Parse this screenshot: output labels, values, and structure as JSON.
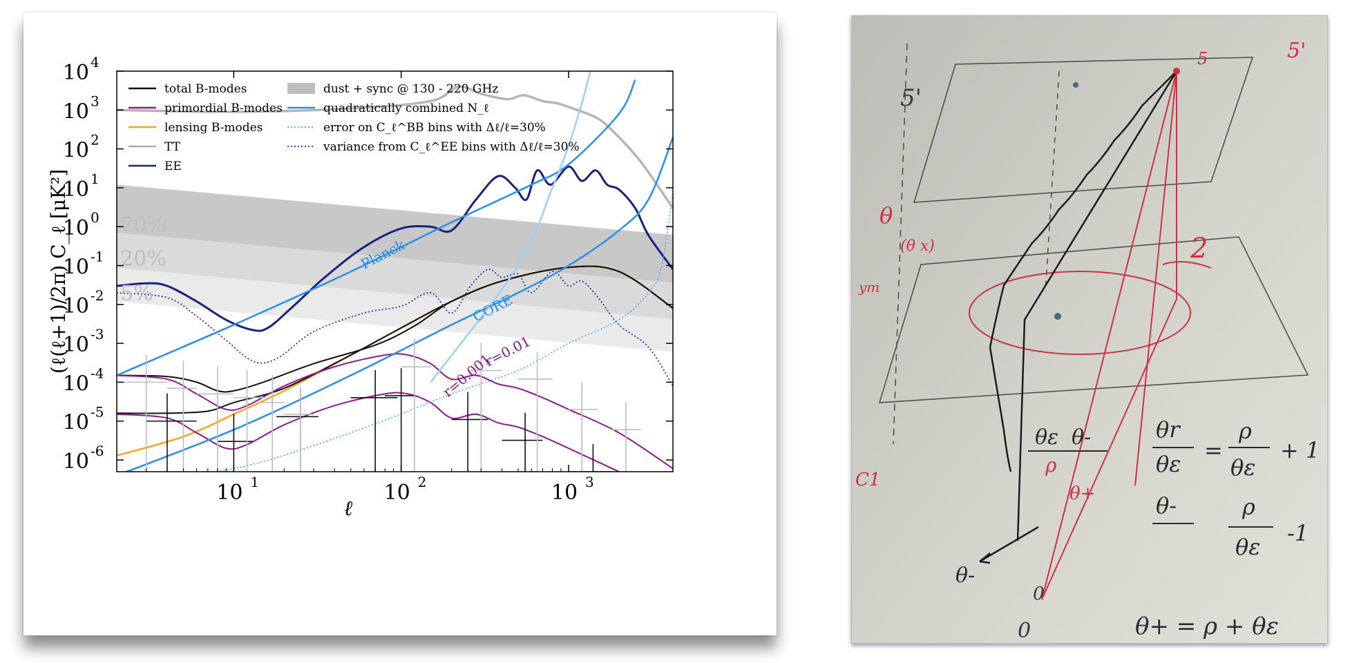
{
  "chart_data": {
    "type": "line",
    "xlabel": "ℓ",
    "ylabel": "(ℓ(ℓ+1)/2π) C_ℓ [μK²]",
    "x_scale": "log",
    "y_scale": "log",
    "xlim": [
      2,
      4200
    ],
    "ylim": [
      5e-07,
      10000
    ],
    "x_ticks": [
      {
        "v": 10,
        "b": "10",
        "e": "1"
      },
      {
        "v": 100,
        "b": "10",
        "e": "2"
      },
      {
        "v": 1000,
        "b": "10",
        "e": "3"
      }
    ],
    "y_ticks": [
      {
        "v": 10000.0,
        "b": "10",
        "e": "4"
      },
      {
        "v": 1000.0,
        "b": "10",
        "e": "3"
      },
      {
        "v": 100.0,
        "b": "10",
        "e": "2"
      },
      {
        "v": 10.0,
        "b": "10",
        "e": "1"
      },
      {
        "v": 1.0,
        "b": "10",
        "e": "0"
      },
      {
        "v": 0.1,
        "b": "10",
        "e": "-1"
      },
      {
        "v": 0.01,
        "b": "10",
        "e": "-2"
      },
      {
        "v": 0.001,
        "b": "10",
        "e": "-3"
      },
      {
        "v": 0.0001,
        "b": "10",
        "e": "-4"
      },
      {
        "v": 1e-05,
        "b": "10",
        "e": "-5"
      },
      {
        "v": 1e-06,
        "b": "10",
        "e": "-6"
      }
    ],
    "grid": false,
    "legend_position": "top",
    "legend": [
      {
        "label": "total B-modes",
        "color": "#111111",
        "style": "solid"
      },
      {
        "label": "primordial B-modes",
        "color": "#8b1a89",
        "style": "solid"
      },
      {
        "label": "lensing B-modes",
        "color": "#f5a623",
        "style": "solid"
      },
      {
        "label": "TT",
        "color": "#aaaaaa",
        "style": "solid"
      },
      {
        "label": "EE",
        "color": "#15237e",
        "style": "solid"
      },
      {
        "label": "dust + sync @ 130 - 220 GHz",
        "color": "#bdbdbd",
        "style": "band"
      },
      {
        "label": "quadratically combined N_ℓ",
        "color": "#2a8ee6",
        "style": "solid"
      },
      {
        "label": "error on C_ℓ^BB bins with Δℓ/ℓ=30%",
        "color": "#4da6f0",
        "style": "dotted"
      },
      {
        "label": "variance from C_ℓ^EE bins with Δℓ/ℓ=30%",
        "color": "#2a2a9e",
        "style": "dotted"
      }
    ],
    "annotations": [
      {
        "text": "Planck",
        "x": 60,
        "y": 0.08,
        "angle": -27,
        "color": "#2a8ee6"
      },
      {
        "text": "CORE",
        "x": 280,
        "y": 0.0035,
        "angle": -27,
        "color": "#2a8ee6"
      },
      {
        "text": "r=0.01",
        "x": 330,
        "y": 0.00025,
        "angle": -27,
        "color": "#8b1a89"
      },
      {
        "text": "r=0.001",
        "x": 190,
        "y": 4e-05,
        "angle": -40,
        "color": "#8b1a89"
      },
      {
        "text": "70%",
        "x": 2.1,
        "y": 0.75,
        "angle": 0,
        "color": "#bdbdbd"
      },
      {
        "text": "20%",
        "x": 2.1,
        "y": 0.1,
        "angle": 0,
        "color": "#bdbdbd"
      },
      {
        "text": "5%",
        "x": 2.1,
        "y": 0.013,
        "angle": 0,
        "color": "#bdbdbd"
      }
    ],
    "bands": [
      {
        "name": "70%",
        "color": "#b5b5b5",
        "opacity": 0.75,
        "upper": [
          [
            2,
            12
          ],
          [
            4200,
            0.62
          ]
        ],
        "lower": [
          [
            2,
            0.7
          ],
          [
            4200,
            0.036
          ]
        ]
      },
      {
        "name": "20%",
        "color": "#bcbcbc",
        "opacity": 0.55,
        "upper": [
          [
            2,
            0.7
          ],
          [
            4200,
            0.036
          ]
        ],
        "lower": [
          [
            2,
            0.088
          ],
          [
            4200,
            0.0042
          ]
        ]
      },
      {
        "name": "5%",
        "color": "#d0d0d0",
        "opacity": 0.45,
        "upper": [
          [
            2,
            0.088
          ],
          [
            4200,
            0.0042
          ]
        ],
        "lower": [
          [
            2,
            0.012
          ],
          [
            4200,
            0.0006
          ]
        ]
      }
    ],
    "series": [
      {
        "key": "tt",
        "color": "#b5b5b5",
        "width": 3.5,
        "dash": "",
        "points": [
          [
            2,
            1000
          ],
          [
            10,
            900
          ],
          [
            50,
            1100
          ],
          [
            150,
            1700
          ],
          [
            220,
            4000
          ],
          [
            300,
            2600
          ],
          [
            430,
            1900
          ],
          [
            540,
            2400
          ],
          [
            700,
            1700
          ],
          [
            850,
            1500
          ],
          [
            1000,
            1200
          ],
          [
            1500,
            600
          ],
          [
            2000,
            200
          ],
          [
            2500,
            70
          ],
          [
            3000,
            25
          ],
          [
            4200,
            3
          ]
        ]
      },
      {
        "key": "ee",
        "color": "#15237e",
        "width": 3,
        "dash": "",
        "points": [
          [
            2,
            0.03
          ],
          [
            3,
            0.035
          ],
          [
            4,
            0.03
          ],
          [
            6,
            0.012
          ],
          [
            9,
            0.004
          ],
          [
            13,
            0.0022
          ],
          [
            16,
            0.0025
          ],
          [
            22,
            0.008
          ],
          [
            35,
            0.05
          ],
          [
            60,
            0.3
          ],
          [
            100,
            0.9
          ],
          [
            150,
            1.0
          ],
          [
            200,
            0.8
          ],
          [
            280,
            5
          ],
          [
            380,
            20
          ],
          [
            480,
            10
          ],
          [
            560,
            5
          ],
          [
            650,
            28
          ],
          [
            780,
            12
          ],
          [
            1000,
            35
          ],
          [
            1200,
            15
          ],
          [
            1450,
            28
          ],
          [
            1700,
            12
          ],
          [
            2000,
            9
          ],
          [
            2500,
            3
          ],
          [
            3000,
            0.6
          ],
          [
            4200,
            0.08
          ]
        ]
      },
      {
        "key": "ee_var",
        "color": "#2a2a9e",
        "width": 1.8,
        "dash": "2,3",
        "points": [
          [
            2,
            0.02
          ],
          [
            4,
            0.015
          ],
          [
            6,
            0.005
          ],
          [
            9,
            0.0012
          ],
          [
            13,
            0.00035
          ],
          [
            18,
            0.0004
          ],
          [
            30,
            0.002
          ],
          [
            60,
            0.006
          ],
          [
            100,
            0.009
          ],
          [
            150,
            0.02
          ],
          [
            200,
            0.006
          ],
          [
            260,
            0.03
          ],
          [
            330,
            0.08
          ],
          [
            400,
            0.05
          ],
          [
            500,
            0.06
          ],
          [
            600,
            0.02
          ],
          [
            800,
            0.07
          ],
          [
            1000,
            0.03
          ],
          [
            1200,
            0.04
          ],
          [
            1500,
            0.015
          ],
          [
            2000,
            0.003
          ],
          [
            3000,
            0.0008
          ],
          [
            4200,
            8e-05
          ]
        ]
      },
      {
        "key": "lensing",
        "color": "#f5a623",
        "width": 2.5,
        "dash": "",
        "points": [
          [
            2,
            1.3e-06
          ],
          [
            5,
            4e-06
          ],
          [
            10,
            1.5e-05
          ],
          [
            20,
            6e-05
          ],
          [
            50,
            0.0005
          ],
          [
            100,
            0.0025
          ],
          [
            200,
            0.012
          ],
          [
            400,
            0.04
          ],
          [
            1000,
            0.09
          ],
          [
            2000,
            0.07
          ],
          [
            4200,
            0.008
          ]
        ]
      },
      {
        "key": "total_r001",
        "color": "#111111",
        "width": 2,
        "dash": "",
        "points": [
          [
            2,
            0.00015
          ],
          [
            4,
            0.00014
          ],
          [
            6,
            0.0001
          ],
          [
            8,
            6e-05
          ],
          [
            10,
            6e-05
          ],
          [
            15,
            0.0001
          ],
          [
            30,
            0.0003
          ],
          [
            70,
            0.0009
          ],
          [
            120,
            0.0028
          ],
          [
            200,
            0.012
          ],
          [
            400,
            0.04
          ],
          [
            1000,
            0.09
          ],
          [
            2000,
            0.07
          ],
          [
            4200,
            0.008
          ]
        ]
      },
      {
        "key": "total_r0001",
        "color": "#111111",
        "width": 2,
        "dash": "",
        "points": [
          [
            2,
            1.6e-05
          ],
          [
            4,
            1.6e-05
          ],
          [
            7,
            1.8e-05
          ],
          [
            10,
            3e-05
          ],
          [
            20,
            7e-05
          ],
          [
            50,
            0.0005
          ],
          [
            100,
            0.0025
          ],
          [
            200,
            0.012
          ],
          [
            400,
            0.04
          ],
          [
            1000,
            0.09
          ],
          [
            2000,
            0.07
          ],
          [
            4200,
            0.008
          ]
        ]
      },
      {
        "key": "prim_r001",
        "color": "#8b1a89",
        "width": 2,
        "dash": "",
        "points": [
          [
            2,
            0.00015
          ],
          [
            4,
            0.00012
          ],
          [
            6,
            5e-05
          ],
          [
            9,
            2e-05
          ],
          [
            12,
            2.5e-05
          ],
          [
            20,
            8e-05
          ],
          [
            40,
            0.00025
          ],
          [
            80,
            0.0005
          ],
          [
            110,
            0.0005
          ],
          [
            150,
            0.0003
          ],
          [
            200,
            0.00012
          ],
          [
            280,
            0.00015
          ],
          [
            380,
            9e-05
          ],
          [
            500,
            7e-05
          ],
          [
            700,
            4e-05
          ],
          [
            1000,
            2e-05
          ],
          [
            2000,
            5e-06
          ],
          [
            4200,
            6e-07
          ]
        ]
      },
      {
        "key": "prim_r0001",
        "color": "#8b1a89",
        "width": 2,
        "dash": "",
        "points": [
          [
            2,
            1.5e-05
          ],
          [
            4,
            1.2e-05
          ],
          [
            6,
            5e-06
          ],
          [
            9,
            2e-06
          ],
          [
            12,
            2.5e-06
          ],
          [
            20,
            8e-06
          ],
          [
            40,
            2.5e-05
          ],
          [
            80,
            5e-05
          ],
          [
            110,
            5e-05
          ],
          [
            150,
            3e-05
          ],
          [
            200,
            1.2e-05
          ],
          [
            280,
            1.5e-05
          ],
          [
            380,
            9e-06
          ],
          [
            500,
            7e-06
          ],
          [
            700,
            4e-06
          ],
          [
            1000,
            2e-06
          ],
          [
            2000,
            5e-07
          ]
        ]
      },
      {
        "key": "noise_planck",
        "color": "#2a8ee6",
        "width": 2.5,
        "dash": "",
        "points": [
          [
            2,
            0.00015
          ],
          [
            10,
            0.003
          ],
          [
            50,
            0.07
          ],
          [
            200,
            1.3
          ],
          [
            600,
            12
          ],
          [
            1000,
            40
          ],
          [
            2000,
            800
          ],
          [
            2500,
            6000
          ]
        ]
      },
      {
        "key": "noise_core",
        "color": "#2a8ee6",
        "width": 2.5,
        "dash": "",
        "points": [
          [
            2,
            4e-07
          ],
          [
            10,
            6e-06
          ],
          [
            50,
            0.00015
          ],
          [
            200,
            0.003
          ],
          [
            500,
            0.02
          ],
          [
            1000,
            0.1
          ],
          [
            2000,
            0.8
          ],
          [
            3000,
            5
          ],
          [
            4200,
            200
          ]
        ]
      },
      {
        "key": "error_r001",
        "color": "#9cd0f7",
        "width": 2.5,
        "dash": "",
        "points": [
          [
            150,
            0.0001
          ],
          [
            500,
            0.1
          ],
          [
            800,
            10
          ],
          [
            1000,
            120
          ],
          [
            1200,
            1500
          ],
          [
            1350,
            10000
          ]
        ]
      },
      {
        "key": "error_r0001",
        "color": "#4da6f0",
        "width": 1.6,
        "dash": "2,3",
        "points": [
          [
            2,
            3e-07
          ],
          [
            10,
            6e-07
          ],
          [
            50,
            5e-06
          ],
          [
            200,
            5e-05
          ],
          [
            500,
            0.0002
          ],
          [
            1000,
            0.001
          ],
          [
            2000,
            0.004
          ],
          [
            3000,
            0.02
          ],
          [
            3600,
            0.1
          ],
          [
            4200,
            8
          ]
        ]
      }
    ],
    "errorbars": [
      {
        "color": "#111111",
        "bars": [
          [
            4,
            1e-05,
            3,
            6
          ],
          [
            10,
            3e-06,
            8,
            13
          ],
          [
            25,
            1.3e-05,
            18,
            32
          ],
          [
            70,
            4e-05,
            50,
            95
          ],
          [
            100,
            4.5e-05,
            80,
            120
          ],
          [
            250,
            1.1e-05,
            200,
            330
          ],
          [
            550,
            3.2e-06,
            400,
            700
          ],
          [
            1400,
            5e-07,
            1000,
            1800
          ]
        ]
      },
      {
        "color": "#bdbdbd",
        "bars": [
          [
            3,
            0.0001,
            2,
            4
          ],
          [
            5,
            7e-05,
            4,
            6
          ],
          [
            8,
            5e-05,
            6,
            10
          ],
          [
            12,
            4e-05,
            10,
            15
          ],
          [
            17,
            3e-05,
            14,
            20
          ],
          [
            25,
            1.5e-05,
            20,
            30
          ],
          [
            120,
            0.00025,
            100,
            150
          ],
          [
            300,
            0.0002,
            250,
            400
          ],
          [
            650,
            0.00012,
            500,
            800
          ],
          [
            1200,
            2e-05,
            1000,
            1500
          ],
          [
            2200,
            6e-06,
            1800,
            2700
          ]
        ]
      }
    ]
  },
  "photo": {
    "labels": [
      "5'",
      "5",
      "5'",
      "θ",
      "(θ x)",
      "2",
      "θε",
      "θ-",
      "ρ",
      "θ+",
      "0",
      "ym",
      "C1",
      "θr",
      "θε",
      "=",
      "ρ",
      "θε",
      "+ 1",
      "θ-",
      "ρ",
      "θε",
      "-1",
      "θ+ = ρ + θε",
      "θ-",
      "0"
    ]
  }
}
